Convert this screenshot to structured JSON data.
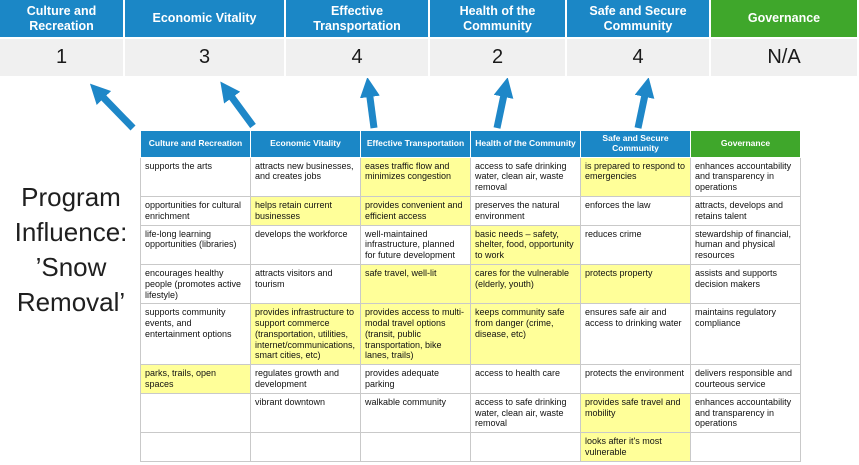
{
  "title": {
    "full": "Program Influence: ’Snow Removal’",
    "lines": [
      "Program",
      "Influence:",
      "’Snow",
      "Removal’"
    ]
  },
  "colors": {
    "header_blue": "#1B87C6",
    "header_green": "#3FA72B",
    "highlight_yellow": "#FFFF99",
    "score_band_gray": "#F0F0F0",
    "arrow_blue": "#1E87C8"
  },
  "summary": [
    {
      "label": "Culture and Recreation",
      "score": "1",
      "theme": "blue"
    },
    {
      "label": "Economic Vitality",
      "score": "3",
      "theme": "blue"
    },
    {
      "label": "Effective Transportation",
      "score": "4",
      "theme": "blue"
    },
    {
      "label": "Health of the Community",
      "score": "2",
      "theme": "blue"
    },
    {
      "label": "Safe and Secure Community",
      "score": "4",
      "theme": "blue"
    },
    {
      "label": "Governance",
      "score": "N/A",
      "theme": "green"
    }
  ],
  "matrix": {
    "headers": [
      {
        "label": "Culture and Recreation",
        "theme": "blue"
      },
      {
        "label": "Economic Vitality",
        "theme": "blue"
      },
      {
        "label": "Effective Transportation",
        "theme": "blue"
      },
      {
        "label": "Health of the Community",
        "theme": "blue"
      },
      {
        "label": "Safe and Secure Community",
        "theme": "blue"
      },
      {
        "label": "Governance",
        "theme": "green"
      }
    ],
    "rows": [
      [
        {
          "text": "supports the arts",
          "highlight": false
        },
        {
          "text": "attracts new businesses, and creates jobs",
          "highlight": false
        },
        {
          "text": "eases traffic flow and minimizes congestion",
          "highlight": true
        },
        {
          "text": "access to safe drinking water, clean air, waste removal",
          "highlight": false
        },
        {
          "text": "is prepared to respond to emergencies",
          "highlight": true
        },
        {
          "text": "enhances accountability and transparency in operations",
          "highlight": false
        }
      ],
      [
        {
          "text": "opportunities for cultural enrichment",
          "highlight": false
        },
        {
          "text": "helps retain current businesses",
          "highlight": true
        },
        {
          "text": "provides convenient and efficient access",
          "highlight": true
        },
        {
          "text": "preserves the natural environment",
          "highlight": false
        },
        {
          "text": "enforces the law",
          "highlight": false
        },
        {
          "text": "attracts, develops and retains talent",
          "highlight": false
        }
      ],
      [
        {
          "text": "life-long learning opportunities (libraries)",
          "highlight": false
        },
        {
          "text": "develops the workforce",
          "highlight": false
        },
        {
          "text": "well-maintained infrastructure, planned for future development",
          "highlight": false
        },
        {
          "text": "basic needs – safety, shelter, food, opportunity to work",
          "highlight": true
        },
        {
          "text": "reduces crime",
          "highlight": false
        },
        {
          "text": "stewardship of financial, human and physical resources",
          "highlight": false
        }
      ],
      [
        {
          "text": "encourages healthy people (promotes active lifestyle)",
          "highlight": false
        },
        {
          "text": "attracts visitors and tourism",
          "highlight": false
        },
        {
          "text": "safe travel, well-lit",
          "highlight": true
        },
        {
          "text": "cares for the vulnerable (elderly, youth)",
          "highlight": true
        },
        {
          "text": "protects property",
          "highlight": true
        },
        {
          "text": "assists and supports decision makers",
          "highlight": false
        }
      ],
      [
        {
          "text": "supports community events, and entertainment options",
          "highlight": false
        },
        {
          "text": "provides infrastructure to support commerce (transportation, utilities, internet/communications, smart cities, etc)",
          "highlight": true
        },
        {
          "text": "provides access to multi-modal travel options (transit, public transportation, bike lanes, trails)",
          "highlight": true
        },
        {
          "text": "keeps community safe from danger (crime, disease, etc)",
          "highlight": true
        },
        {
          "text": "ensures safe air and access to drinking water",
          "highlight": false
        },
        {
          "text": "maintains regulatory compliance",
          "highlight": false
        }
      ],
      [
        {
          "text": "parks, trails, open spaces",
          "highlight": true
        },
        {
          "text": "regulates growth and development",
          "highlight": false
        },
        {
          "text": "provides adequate parking",
          "highlight": false
        },
        {
          "text": "access to health care",
          "highlight": false
        },
        {
          "text": "protects the environment",
          "highlight": false
        },
        {
          "text": "delivers responsible and courteous service",
          "highlight": false
        }
      ],
      [
        {
          "text": "",
          "highlight": false
        },
        {
          "text": "vibrant downtown",
          "highlight": false
        },
        {
          "text": "walkable community",
          "highlight": false
        },
        {
          "text": "access to safe drinking water, clean air, waste removal",
          "highlight": false
        },
        {
          "text": "provides safe travel and mobility",
          "highlight": true
        },
        {
          "text": "enhances accountability and transparency in operations",
          "highlight": false
        }
      ],
      [
        {
          "text": "",
          "highlight": false
        },
        {
          "text": "",
          "highlight": false
        },
        {
          "text": "",
          "highlight": false
        },
        {
          "text": "",
          "highlight": false
        },
        {
          "text": "looks after it's most vulnerable",
          "highlight": true
        },
        {
          "text": "",
          "highlight": false
        }
      ]
    ]
  }
}
